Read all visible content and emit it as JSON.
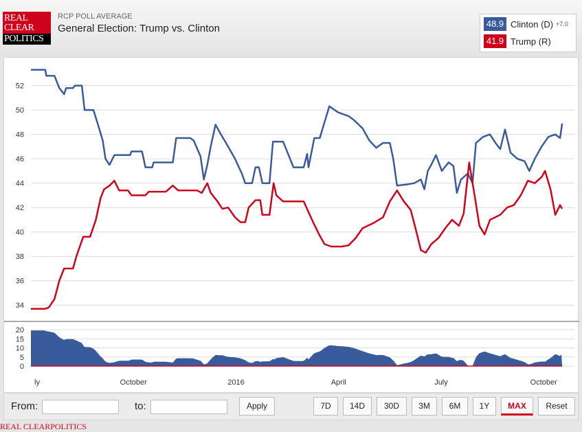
{
  "header": {
    "logo_text": "REAL CLEAR POLITICS",
    "subtitle": "RCP POLL AVERAGE",
    "title": "General Election: Trump vs. Clinton"
  },
  "legend": [
    {
      "value": "48.9",
      "name": "Clinton (D)",
      "spread": "+7.0",
      "color": "#3a5b9b"
    },
    {
      "value": "41.9",
      "name": "Trump (R)",
      "spread": "",
      "color": "#d0021b"
    }
  ],
  "controls": {
    "from_label": "From:",
    "from_value": "",
    "to_label": "to:",
    "to_value": "",
    "apply": "Apply",
    "ranges": [
      "7D",
      "14D",
      "30D",
      "3M",
      "6M",
      "1Y",
      "MAX"
    ],
    "active": "MAX",
    "reset": "Reset"
  },
  "footer": "REAL CLEARPOLITICS",
  "chart_data": {
    "type": "line",
    "x_unit": "months since July 1, 2015",
    "xlim": [
      0,
      15.9
    ],
    "ylim": [
      33,
      53.5
    ],
    "yticks": [
      34,
      36,
      38,
      40,
      42,
      44,
      46,
      48,
      50,
      52
    ],
    "xticks": [
      {
        "m": 0,
        "label": "ly"
      },
      {
        "m": 3,
        "label": "October"
      },
      {
        "m": 6,
        "label": "2016"
      },
      {
        "m": 9,
        "label": "April"
      },
      {
        "m": 12,
        "label": "July"
      },
      {
        "m": 15,
        "label": "October"
      }
    ],
    "spread_ylim": [
      0,
      20
    ],
    "spread_yticks": [
      0,
      5,
      10,
      15,
      20
    ],
    "grid": true,
    "series": [
      {
        "name": "Clinton (D)",
        "color": "#3a5b9b",
        "points": [
          [
            0,
            53.3
          ],
          [
            0.42,
            53.3
          ],
          [
            0.45,
            52.8
          ],
          [
            0.69,
            52.8
          ],
          [
            0.83,
            51.8
          ],
          [
            0.97,
            51.3
          ],
          [
            1.03,
            51.8
          ],
          [
            1.23,
            51.8
          ],
          [
            1.29,
            52.0
          ],
          [
            1.49,
            52.0
          ],
          [
            1.57,
            50.0
          ],
          [
            1.83,
            50.0
          ],
          [
            1.94,
            49.0
          ],
          [
            2.1,
            47.5
          ],
          [
            2.18,
            46.0
          ],
          [
            2.3,
            45.5
          ],
          [
            2.44,
            46.3
          ],
          [
            2.9,
            46.3
          ],
          [
            2.94,
            46.6
          ],
          [
            3.25,
            46.6
          ],
          [
            3.35,
            45.3
          ],
          [
            3.55,
            45.3
          ],
          [
            3.59,
            45.7
          ],
          [
            4.15,
            45.7
          ],
          [
            4.25,
            47.7
          ],
          [
            4.66,
            47.7
          ],
          [
            4.76,
            47.5
          ],
          [
            4.96,
            46.2
          ],
          [
            5.06,
            44.3
          ],
          [
            5.16,
            45.5
          ],
          [
            5.26,
            47.0
          ],
          [
            5.4,
            48.8
          ],
          [
            5.56,
            48.0
          ],
          [
            5.77,
            47.0
          ],
          [
            5.97,
            46.0
          ],
          [
            6.17,
            44.8
          ],
          [
            6.27,
            44.0
          ],
          [
            6.47,
            44.0
          ],
          [
            6.57,
            45.3
          ],
          [
            6.67,
            45.3
          ],
          [
            6.77,
            44.0
          ],
          [
            6.98,
            44.0
          ],
          [
            7.08,
            47.4
          ],
          [
            7.38,
            47.4
          ],
          [
            7.58,
            46.0
          ],
          [
            7.68,
            45.3
          ],
          [
            7.98,
            45.3
          ],
          [
            8.08,
            46.4
          ],
          [
            8.12,
            45.3
          ],
          [
            8.29,
            47.7
          ],
          [
            8.45,
            47.7
          ],
          [
            8.59,
            49.0
          ],
          [
            8.73,
            50.3
          ],
          [
            8.99,
            49.8
          ],
          [
            9.29,
            49.5
          ],
          [
            9.44,
            49.2
          ],
          [
            9.7,
            48.5
          ],
          [
            9.9,
            47.5
          ],
          [
            10.1,
            46.9
          ],
          [
            10.3,
            47.3
          ],
          [
            10.5,
            47.3
          ],
          [
            10.6,
            46.0
          ],
          [
            10.71,
            43.8
          ],
          [
            11.01,
            43.9
          ],
          [
            11.21,
            44.0
          ],
          [
            11.41,
            44.3
          ],
          [
            11.51,
            43.5
          ],
          [
            11.61,
            45.0
          ],
          [
            11.71,
            45.5
          ],
          [
            11.85,
            46.3
          ],
          [
            12.02,
            45.0
          ],
          [
            12.22,
            45.7
          ],
          [
            12.36,
            45.4
          ],
          [
            12.46,
            43.2
          ],
          [
            12.58,
            44.3
          ],
          [
            12.78,
            44.8
          ],
          [
            12.92,
            44.0
          ],
          [
            13.02,
            47.3
          ],
          [
            13.23,
            47.8
          ],
          [
            13.43,
            48.0
          ],
          [
            13.59,
            47.3
          ],
          [
            13.73,
            46.8
          ],
          [
            13.87,
            48.4
          ],
          [
            14.03,
            46.5
          ],
          [
            14.23,
            46.0
          ],
          [
            14.44,
            45.8
          ],
          [
            14.58,
            45.0
          ],
          [
            14.74,
            46.0
          ],
          [
            14.94,
            47.0
          ],
          [
            15.14,
            47.8
          ],
          [
            15.34,
            48.0
          ],
          [
            15.48,
            47.7
          ],
          [
            15.54,
            48.9
          ]
        ]
      },
      {
        "name": "Trump (R)",
        "color": "#d0021b",
        "points": [
          [
            0,
            33.7
          ],
          [
            0.42,
            33.7
          ],
          [
            0.52,
            33.8
          ],
          [
            0.69,
            34.5
          ],
          [
            0.83,
            36.0
          ],
          [
            0.97,
            37.0
          ],
          [
            1.23,
            37.0
          ],
          [
            1.33,
            38.0
          ],
          [
            1.53,
            39.6
          ],
          [
            1.73,
            39.6
          ],
          [
            1.9,
            41.0
          ],
          [
            2.04,
            42.8
          ],
          [
            2.14,
            43.5
          ],
          [
            2.3,
            43.8
          ],
          [
            2.44,
            44.2
          ],
          [
            2.58,
            43.4
          ],
          [
            2.84,
            43.4
          ],
          [
            2.94,
            43.0
          ],
          [
            3.35,
            43.0
          ],
          [
            3.45,
            43.3
          ],
          [
            3.95,
            43.3
          ],
          [
            4.15,
            43.8
          ],
          [
            4.31,
            43.4
          ],
          [
            4.86,
            43.4
          ],
          [
            5.0,
            43.2
          ],
          [
            5.16,
            44.0
          ],
          [
            5.26,
            43.2
          ],
          [
            5.46,
            42.5
          ],
          [
            5.6,
            41.9
          ],
          [
            5.77,
            42.0
          ],
          [
            5.97,
            41.2
          ],
          [
            6.13,
            40.8
          ],
          [
            6.27,
            40.8
          ],
          [
            6.37,
            42.0
          ],
          [
            6.57,
            42.6
          ],
          [
            6.71,
            42.6
          ],
          [
            6.77,
            41.4
          ],
          [
            6.98,
            41.4
          ],
          [
            7.1,
            44.0
          ],
          [
            7.18,
            43.0
          ],
          [
            7.38,
            42.5
          ],
          [
            7.98,
            42.5
          ],
          [
            8.14,
            41.5
          ],
          [
            8.29,
            40.6
          ],
          [
            8.43,
            39.8
          ],
          [
            8.59,
            39.0
          ],
          [
            8.79,
            38.8
          ],
          [
            9.09,
            38.8
          ],
          [
            9.29,
            38.9
          ],
          [
            9.5,
            39.5
          ],
          [
            9.7,
            40.3
          ],
          [
            10.0,
            40.7
          ],
          [
            10.3,
            41.2
          ],
          [
            10.5,
            42.5
          ],
          [
            10.71,
            43.4
          ],
          [
            10.91,
            42.5
          ],
          [
            11.11,
            41.8
          ],
          [
            11.25,
            40.3
          ],
          [
            11.41,
            38.5
          ],
          [
            11.55,
            38.3
          ],
          [
            11.71,
            39.0
          ],
          [
            11.92,
            39.5
          ],
          [
            12.12,
            40.3
          ],
          [
            12.32,
            41.0
          ],
          [
            12.52,
            40.5
          ],
          [
            12.66,
            41.5
          ],
          [
            12.82,
            45.7
          ],
          [
            12.98,
            43.0
          ],
          [
            13.12,
            40.5
          ],
          [
            13.27,
            39.8
          ],
          [
            13.43,
            41.0
          ],
          [
            13.73,
            41.4
          ],
          [
            13.93,
            42.0
          ],
          [
            14.13,
            42.2
          ],
          [
            14.33,
            43.0
          ],
          [
            14.54,
            44.2
          ],
          [
            14.74,
            44.0
          ],
          [
            14.94,
            44.5
          ],
          [
            15.04,
            45.0
          ],
          [
            15.2,
            43.5
          ],
          [
            15.34,
            41.4
          ],
          [
            15.48,
            42.2
          ],
          [
            15.54,
            41.9
          ]
        ]
      }
    ]
  }
}
